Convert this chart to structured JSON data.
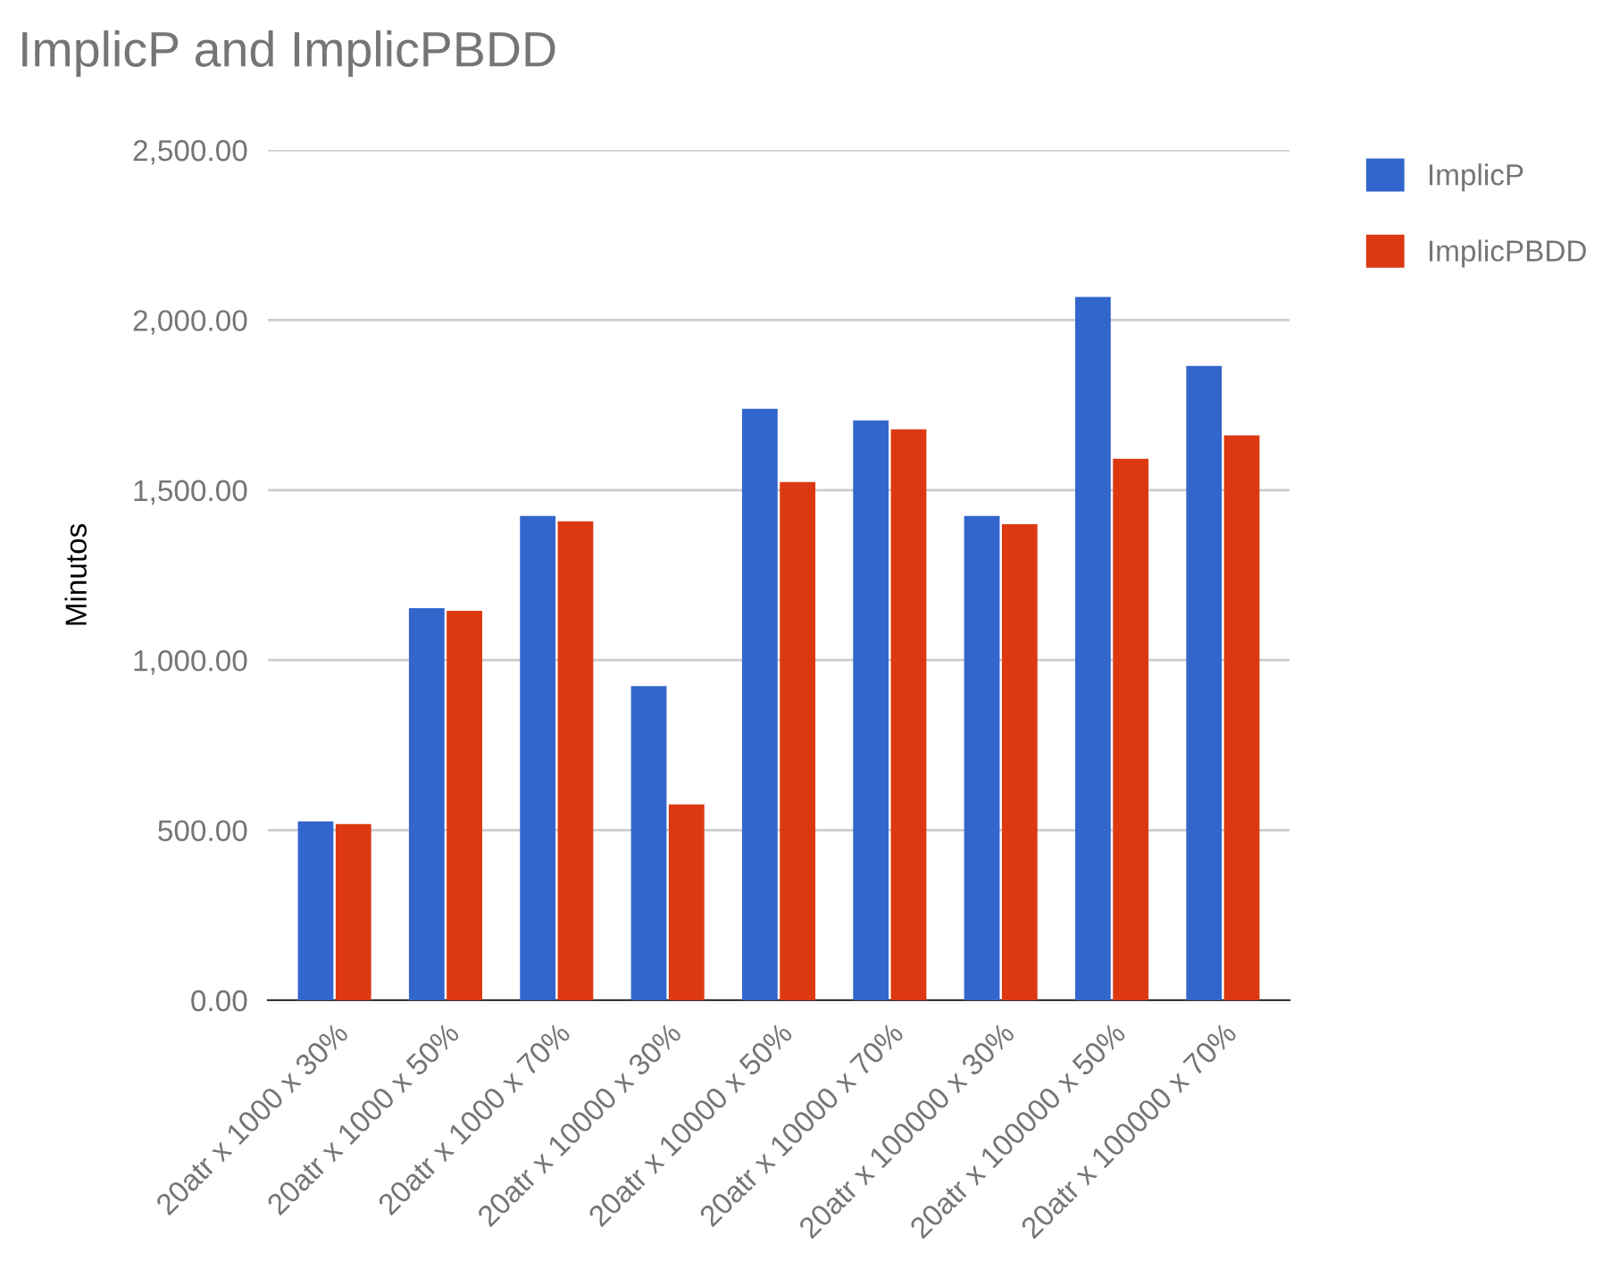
{
  "chart_data": {
    "type": "bar",
    "title": "ImplicP and ImplicPBDD",
    "ylabel": "Minutos",
    "categories": [
      "20atr x 1000 x 30%",
      "20atr x 1000 x 50%",
      "20atr x 1000 x 70%",
      "20atr x 10000 x 30%",
      "20atr x 10000 x 50%",
      "20atr x 10000 x 70%",
      "20atr x 100000 x 30%",
      "20atr x 100000 x 50%",
      "20atr x 100000 x 70%"
    ],
    "series": [
      {
        "name": "ImplicP",
        "color": "#3366cc",
        "values": [
          526,
          1153,
          1424,
          924,
          1739,
          1705,
          1424,
          2068,
          1865
        ]
      },
      {
        "name": "ImplicPBDD",
        "color": "#dc3912",
        "values": [
          518,
          1145,
          1408,
          576,
          1524,
          1679,
          1400,
          1592,
          1661
        ]
      }
    ],
    "ylim": [
      0,
      2500
    ],
    "yticks": [
      {
        "value": 0,
        "label": "0.00"
      },
      {
        "value": 500,
        "label": "500.00"
      },
      {
        "value": 1000,
        "label": "1,000.00"
      },
      {
        "value": 1500,
        "label": "1,500.00"
      },
      {
        "value": 2000,
        "label": "2,000.00"
      },
      {
        "value": 2500,
        "label": "2,500.00"
      }
    ],
    "grid": "y",
    "legend": "top right"
  }
}
